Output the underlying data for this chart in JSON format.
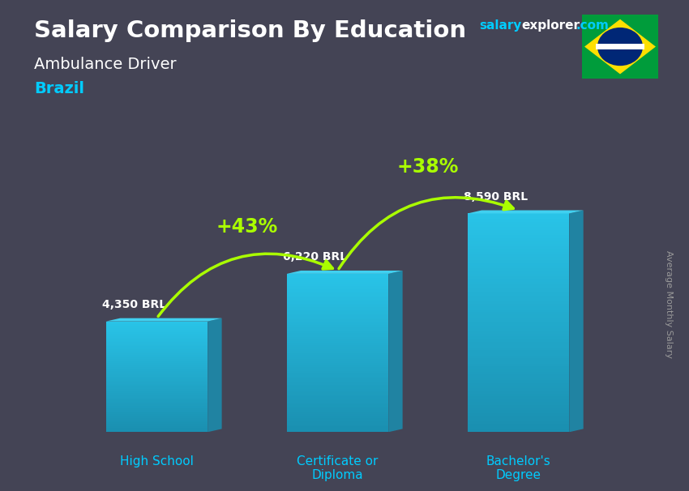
{
  "title_main": "Salary Comparison By Education",
  "title_sub": "Ambulance Driver",
  "title_country": "Brazil",
  "ylabel": "Average Monthly Salary",
  "categories": [
    "High School",
    "Certificate or\nDiploma",
    "Bachelor's\nDegree"
  ],
  "values": [
    4350,
    6220,
    8590
  ],
  "value_labels": [
    "4,350 BRL",
    "6,220 BRL",
    "8,590 BRL"
  ],
  "pct_labels": [
    "+43%",
    "+38%"
  ],
  "bar_face_color": "#29c4e8",
  "bar_left_color": "#5dd8f0",
  "bar_right_color": "#1a8fb0",
  "bar_top_color": "#40d0f0",
  "bg_color": "#444455",
  "title_color": "#ffffff",
  "subtitle_color": "#ffffff",
  "country_color": "#00ccff",
  "watermark_cyan": "#00ccff",
  "watermark_white": "#ffffff",
  "value_label_color": "#ffffff",
  "pct_color": "#aaff00",
  "ylabel_color": "#999999",
  "xlabel_color": "#00ccff",
  "figsize": [
    8.5,
    6.06
  ],
  "dpi": 100
}
